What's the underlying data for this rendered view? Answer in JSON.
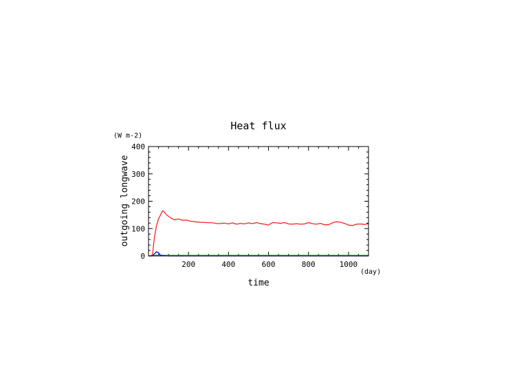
{
  "chart_data": {
    "type": "line",
    "title": "Heat flux",
    "xlabel": "time",
    "ylabel": "outgoing longwave",
    "xunit": "(day)",
    "yunit": "(W m-2)",
    "xlim": [
      0,
      1100
    ],
    "ylim": [
      0,
      400
    ],
    "xticks": [
      "200",
      "400",
      "600",
      "800",
      "1000"
    ],
    "yticks": [
      "0",
      "100",
      "200",
      "300",
      "400"
    ],
    "grid": false,
    "legend": "none",
    "series": [
      {
        "color": "#ff2020",
        "x": [
          0,
          10,
          20,
          30,
          40,
          50,
          60,
          70,
          80,
          90,
          100,
          110,
          120,
          130,
          150,
          170,
          190,
          210,
          230,
          260,
          290,
          320,
          350,
          380,
          400,
          420,
          440,
          460,
          480,
          500,
          520,
          540,
          560,
          580,
          600,
          620,
          640,
          660,
          680,
          700,
          720,
          740,
          760,
          780,
          800,
          820,
          840,
          860,
          880,
          900,
          920,
          940,
          960,
          980,
          1000,
          1020,
          1040,
          1060,
          1080,
          1100
        ],
        "y": [
          0,
          0,
          5,
          70,
          110,
          135,
          150,
          165,
          160,
          150,
          145,
          140,
          135,
          132,
          135,
          130,
          131,
          127,
          125,
          123,
          122,
          121,
          118,
          120,
          117,
          121,
          116,
          119,
          117,
          121,
          118,
          122,
          118,
          116,
          113,
          122,
          121,
          119,
          122,
          117,
          116,
          118,
          116,
          117,
          122,
          118,
          116,
          119,
          114,
          114,
          121,
          125,
          123,
          119,
          113,
          111,
          116,
          117,
          115,
          118
        ]
      },
      {
        "color": "#0000ff",
        "x": [
          0,
          20,
          30,
          40,
          50,
          60,
          80,
          100,
          1100
        ],
        "y": [
          0,
          0,
          8,
          15,
          12,
          2,
          1,
          0,
          0
        ]
      },
      {
        "color": "#10c010",
        "x": [
          0,
          20,
          40,
          60,
          1100
        ],
        "y": [
          0,
          1,
          3,
          2,
          2
        ]
      },
      {
        "color": "#ffd000",
        "x": [
          0,
          20,
          40,
          60,
          1100
        ],
        "y": [
          0,
          1,
          2,
          2,
          2
        ]
      }
    ]
  }
}
